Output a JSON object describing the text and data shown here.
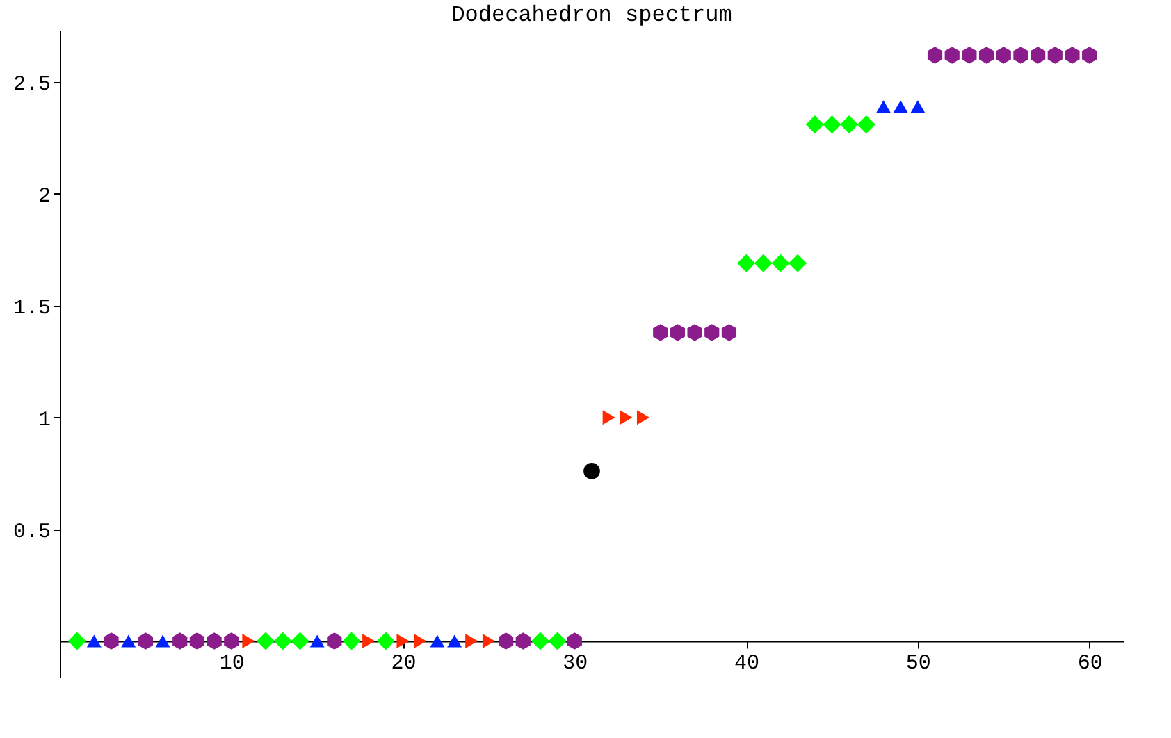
{
  "chart_data": {
    "type": "scatter",
    "title": "Dodecahedron spectrum",
    "xlim": [
      0,
      62
    ],
    "ylim": [
      -0.16,
      2.73
    ],
    "xticks": [
      10,
      20,
      30,
      40,
      50,
      60
    ],
    "yticks": [
      0.5,
      1,
      1.5,
      2,
      2.5
    ],
    "series": [
      {
        "color": "#00ff00",
        "marker": "diamond",
        "x": [
          1,
          12,
          13,
          14,
          17,
          19,
          28,
          29,
          40,
          41,
          42,
          43,
          44,
          45,
          46,
          47
        ],
        "values": [
          0,
          0,
          0,
          0,
          0,
          0,
          0,
          0,
          1.69,
          1.69,
          1.69,
          1.69,
          2.31,
          2.31,
          2.31,
          2.31
        ]
      },
      {
        "color": "#0022ff",
        "marker": "triangle",
        "x": [
          2,
          4,
          6,
          15,
          22,
          23,
          48,
          49,
          50
        ],
        "values": [
          0,
          0,
          0,
          0,
          0,
          0,
          2.39,
          2.39,
          2.39
        ]
      },
      {
        "color": "#8b1c8b",
        "x": [
          3,
          5,
          7,
          8,
          9,
          10,
          16,
          26,
          27,
          30,
          35,
          36,
          37,
          38,
          39,
          51,
          52,
          53,
          54,
          55,
          56,
          57,
          58,
          59,
          60
        ],
        "values": [
          0,
          0,
          0,
          0,
          0,
          0,
          0,
          0,
          0,
          0,
          1.38,
          1.38,
          1.38,
          1.38,
          1.38,
          2.62,
          2.62,
          2.62,
          2.62,
          2.62,
          2.62,
          2.62,
          2.62,
          2.62,
          2.62
        ]
      },
      {
        "color": "#ff2a00",
        "marker": "triangle-right",
        "x": [
          11,
          18,
          20,
          21,
          24,
          25,
          32,
          33,
          34
        ],
        "values": [
          0,
          0,
          0,
          0,
          0,
          0,
          1.0,
          1.0,
          1.0
        ]
      },
      {
        "color": "#000000",
        "marker": "circle",
        "x": [
          31
        ],
        "values": [
          0.76
        ]
      }
    ]
  }
}
